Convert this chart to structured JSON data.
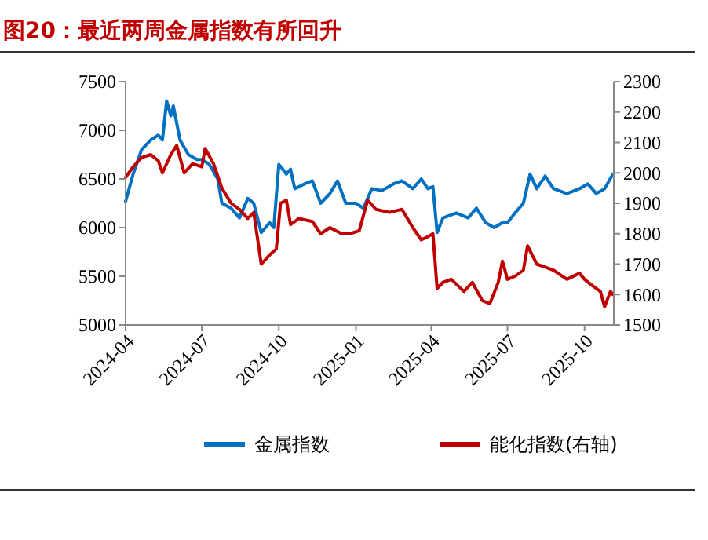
{
  "chart_data": {
    "type": "line",
    "title": "图20：最近两周金属指数有所回升",
    "x": [
      "2024-04-01",
      "2024-04-10",
      "2024-04-20",
      "2024-05-01",
      "2024-05-10",
      "2024-05-15",
      "2024-05-20",
      "2024-05-25",
      "2024-05-28",
      "2024-06-05",
      "2024-06-15",
      "2024-06-25",
      "2024-07-01",
      "2024-07-10",
      "2024-07-20",
      "2024-07-25",
      "2024-08-05",
      "2024-08-15",
      "2024-08-25",
      "2024-09-01",
      "2024-09-10",
      "2024-09-20",
      "2024-09-25",
      "2024-10-01",
      "2024-10-10",
      "2024-10-15",
      "2024-10-20",
      "2024-11-01",
      "2024-11-10",
      "2024-11-20",
      "2024-12-01",
      "2024-12-10",
      "2024-12-20",
      "2025-01-01",
      "2025-01-10",
      "2025-01-20",
      "2025-02-01",
      "2025-02-15",
      "2025-02-25",
      "2025-03-10",
      "2025-03-20",
      "2025-03-28",
      "2025-04-03",
      "2025-04-08",
      "2025-04-15",
      "2025-05-01",
      "2025-05-15",
      "2025-05-25",
      "2025-06-05",
      "2025-06-15",
      "2025-06-25",
      "2025-07-01",
      "2025-07-10",
      "2025-07-20",
      "2025-07-28",
      "2025-08-05",
      "2025-08-15",
      "2025-08-25",
      "2025-09-10",
      "2025-09-25",
      "2025-10-05",
      "2025-10-15",
      "2025-10-25",
      "2025-11-04"
    ],
    "series": [
      {
        "name": "金属指数",
        "color": "#0070c0",
        "values": [
          6270,
          6550,
          6800,
          6900,
          6950,
          6900,
          7300,
          7150,
          7250,
          6900,
          6750,
          6700,
          6700,
          6650,
          6500,
          6250,
          6200,
          6100,
          6300,
          6250,
          5950,
          6050,
          6000,
          6650,
          6550,
          6600,
          6400,
          6450,
          6480,
          6250,
          6350,
          6480,
          6250,
          6250,
          6200,
          6400,
          6380,
          6450,
          6480,
          6400,
          6500,
          6400,
          6420,
          5950,
          6100,
          6150,
          6100,
          6200,
          6050,
          6000,
          6050,
          6050,
          6150,
          6250,
          6550,
          6400,
          6530,
          6400,
          6350,
          6400,
          6450,
          6350,
          6400,
          6550
        ]
      },
      {
        "name": "能化指数(右轴)",
        "color": "#c00000",
        "axis": "y2",
        "x": [
          "2024-04-01",
          "2024-04-10",
          "2024-04-20",
          "2024-05-01",
          "2024-05-10",
          "2024-05-15",
          "2024-05-25",
          "2024-06-01",
          "2024-06-10",
          "2024-06-20",
          "2024-07-01",
          "2024-07-05",
          "2024-07-15",
          "2024-07-25",
          "2024-08-05",
          "2024-08-15",
          "2024-08-25",
          "2024-09-01",
          "2024-09-10",
          "2024-09-20",
          "2024-09-28",
          "2024-10-03",
          "2024-10-10",
          "2024-10-15",
          "2024-10-25",
          "2024-11-10",
          "2024-11-20",
          "2024-12-01",
          "2024-12-15",
          "2024-12-25",
          "2025-01-05",
          "2025-01-15",
          "2025-01-25",
          "2025-02-10",
          "2025-02-25",
          "2025-03-10",
          "2025-03-20",
          "2025-03-28",
          "2025-04-03",
          "2025-04-08",
          "2025-04-15",
          "2025-04-25",
          "2025-05-10",
          "2025-05-20",
          "2025-06-01",
          "2025-06-10",
          "2025-06-20",
          "2025-06-25",
          "2025-07-01",
          "2025-07-10",
          "2025-07-20",
          "2025-07-25",
          "2025-08-05",
          "2025-08-15",
          "2025-08-25",
          "2025-09-10",
          "2025-09-25",
          "2025-10-01",
          "2025-10-10",
          "2025-10-20",
          "2025-10-25",
          "2025-11-01",
          "2025-11-04"
        ],
        "values": [
          1985,
          2020,
          2050,
          2060,
          2040,
          2000,
          2060,
          2090,
          2000,
          2030,
          2020,
          2080,
          2030,
          1950,
          1900,
          1880,
          1850,
          1870,
          1700,
          1730,
          1750,
          1900,
          1910,
          1830,
          1850,
          1840,
          1800,
          1820,
          1800,
          1800,
          1810,
          1910,
          1880,
          1870,
          1880,
          1820,
          1780,
          1790,
          1800,
          1620,
          1640,
          1650,
          1610,
          1640,
          1580,
          1570,
          1640,
          1710,
          1650,
          1660,
          1680,
          1760,
          1700,
          1690,
          1680,
          1650,
          1670,
          1650,
          1630,
          1610,
          1560,
          1610,
          1600
        ]
      }
    ],
    "xlim": [
      "2024-04-01",
      "2025-11-05"
    ],
    "xticks": [
      "2024-04",
      "2024-07",
      "2024-10",
      "2025-01",
      "2025-04",
      "2025-07",
      "2025-10"
    ],
    "ylim": [
      5000,
      7500
    ],
    "yticks": [
      5000,
      5500,
      6000,
      6500,
      7000,
      7500
    ],
    "y2lim": [
      1500,
      2300
    ],
    "y2ticks": [
      1500,
      1600,
      1700,
      1800,
      1900,
      2000,
      2100,
      2200,
      2300
    ],
    "legend": "bottom",
    "grid": false
  }
}
